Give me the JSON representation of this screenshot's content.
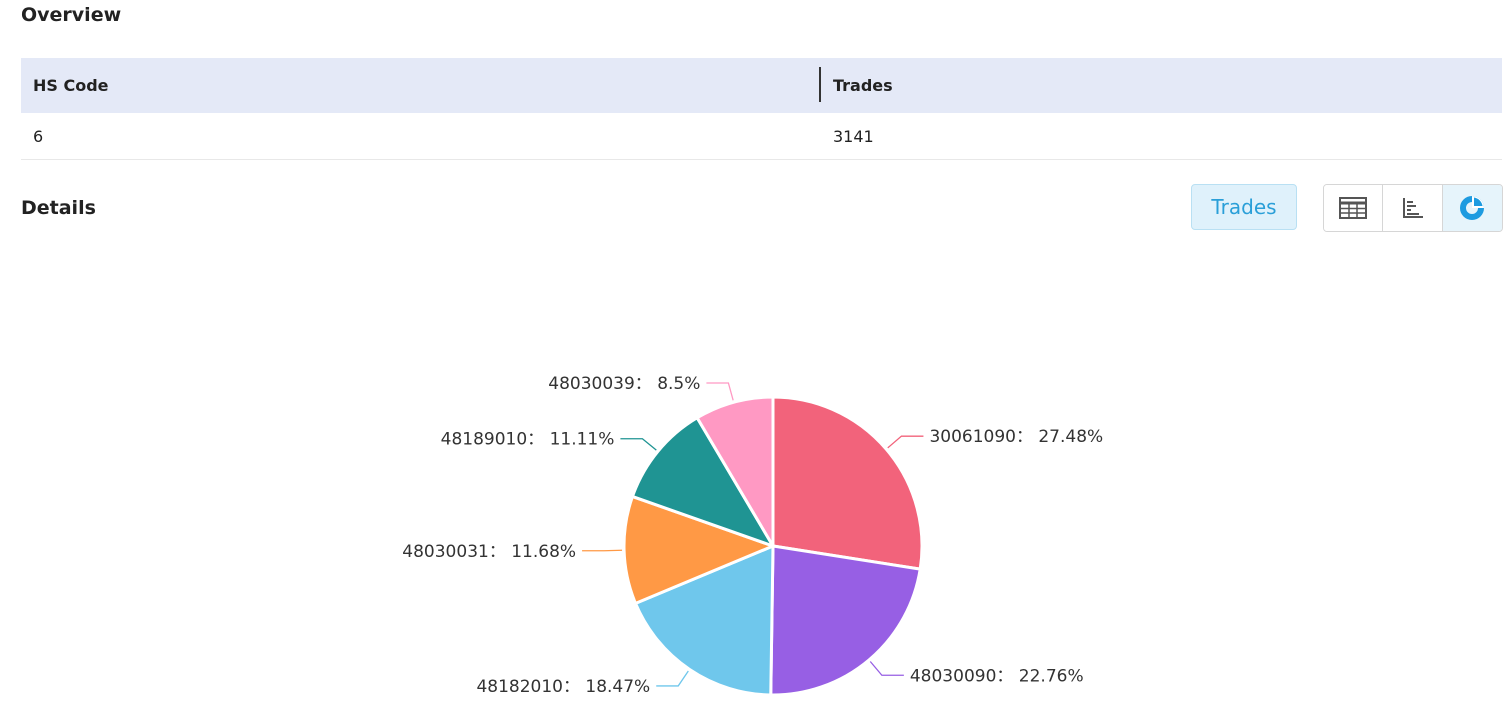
{
  "overview": {
    "title": "Overview",
    "columns": [
      "HS Code",
      "Trades"
    ],
    "rows": [
      [
        "6",
        "3141"
      ]
    ]
  },
  "details": {
    "title": "Details",
    "metric_button": "Trades",
    "view_buttons": [
      "table-icon",
      "bar-chart-icon",
      "pie-chart-icon"
    ]
  },
  "chart_data": {
    "type": "pie",
    "slices": [
      {
        "label": "30061090",
        "value": 27.48,
        "color": "#f2637b"
      },
      {
        "label": "48030090",
        "value": 22.76,
        "color": "#975fe4"
      },
      {
        "label": "48182010",
        "value": 18.47,
        "color": "#6fc7ec"
      },
      {
        "label": "48030031",
        "value": 11.68,
        "color": "#ff9945"
      },
      {
        "label": "48189010",
        "value": 11.11,
        "color": "#1f9493"
      },
      {
        "label": "48030039",
        "value": 8.5,
        "color": "#ff99c3"
      }
    ]
  }
}
